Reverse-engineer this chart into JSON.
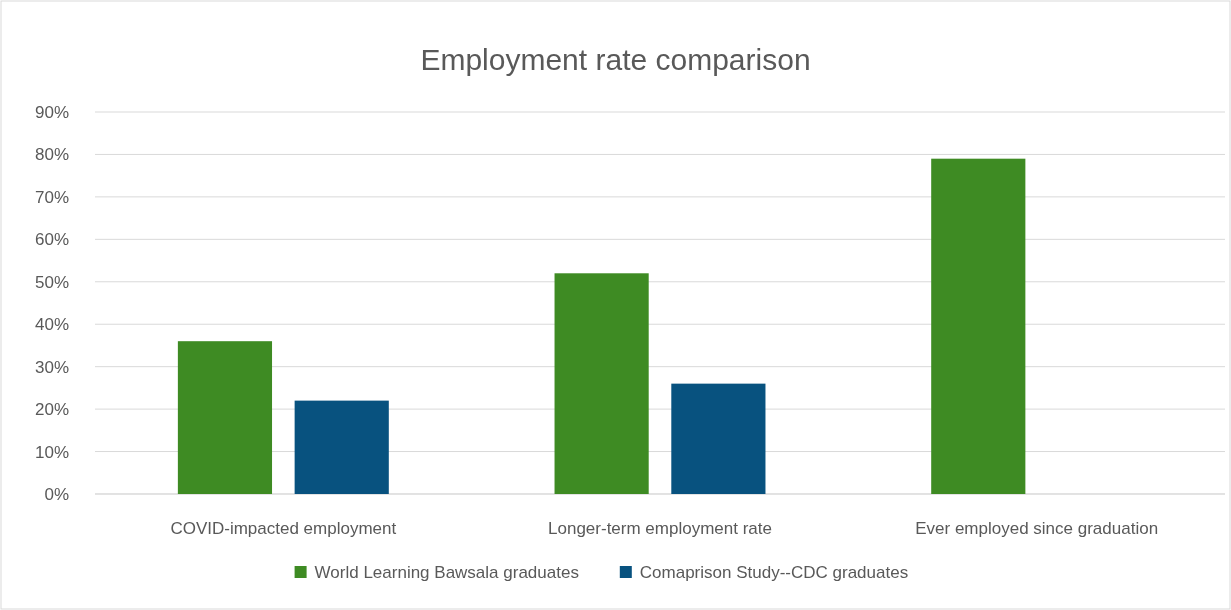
{
  "chart_data": {
    "type": "bar",
    "title": "Employment rate comparison",
    "categories": [
      "COVID-impacted employment",
      "Longer-term employment rate",
      "Ever employed since graduation"
    ],
    "series": [
      {
        "name": "World Learning Bawsala graduates",
        "color": "#3e8b23",
        "values": [
          36,
          52,
          79
        ]
      },
      {
        "name": "Comaprison Study--CDC graduates",
        "color": "#08527f",
        "values": [
          22,
          26,
          null
        ]
      }
    ],
    "ylim": [
      0,
      90
    ],
    "yticks": [
      {
        "value": 0,
        "label": "0%"
      },
      {
        "value": 10,
        "label": "10%"
      },
      {
        "value": 20,
        "label": "20%"
      },
      {
        "value": 30,
        "label": "30%"
      },
      {
        "value": 40,
        "label": "40%"
      },
      {
        "value": 50,
        "label": "50%"
      },
      {
        "value": 60,
        "label": "60%"
      },
      {
        "value": 70,
        "label": "70%"
      },
      {
        "value": 80,
        "label": "80%"
      },
      {
        "value": 90,
        "label": "90%"
      }
    ],
    "grid": "y",
    "legend": "bottom"
  }
}
